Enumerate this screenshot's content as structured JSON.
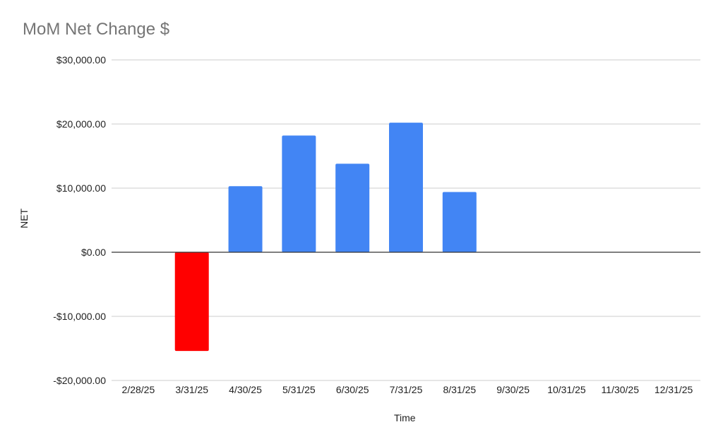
{
  "chart_data": {
    "type": "bar",
    "title": "MoM Net Change $",
    "xlabel": "Time",
    "ylabel": "NET",
    "categories": [
      "2/28/25",
      "3/31/25",
      "4/30/25",
      "5/31/25",
      "6/30/25",
      "7/31/25",
      "8/31/25",
      "9/30/25",
      "10/31/25",
      "11/30/25",
      "12/31/25"
    ],
    "values": [
      0,
      -15400,
      10300,
      18200,
      13800,
      20200,
      9400,
      0,
      0,
      0,
      0
    ],
    "ylim": [
      -20000,
      30000
    ],
    "yticks": [
      30000,
      20000,
      10000,
      0,
      -10000,
      -20000
    ],
    "ytick_labels": [
      "$30,000.00",
      "$20,000.00",
      "$10,000.00",
      "$0.00",
      "-$10,000.00",
      "-$20,000.00"
    ],
    "grid": true,
    "legend": "none",
    "colors": {
      "positive": "#4285f4",
      "negative": "#ff0000",
      "grid": "#cccccc",
      "zero_line": "#333333"
    }
  }
}
